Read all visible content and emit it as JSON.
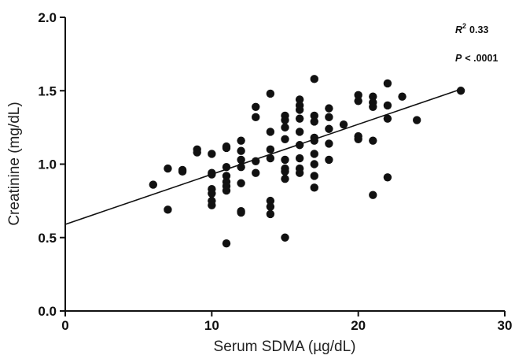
{
  "chart_data": {
    "type": "scatter",
    "title": "",
    "xlabel": "Serum SDMA (µg/dL)",
    "ylabel": "Creatinine (mg/dL)",
    "xlim": [
      0,
      30
    ],
    "ylim": [
      0.0,
      2.0
    ],
    "xticks": [
      "0",
      "10",
      "20",
      "30"
    ],
    "yticks": [
      "0.0",
      "0.5",
      "1.0",
      "1.5",
      "2.0"
    ],
    "grid": false,
    "annotations": {
      "r2_symbol": "R",
      "r2_exp": "2",
      "r2_value": "0.33",
      "p_symbol": "P",
      "p_value": "< .0001"
    },
    "regression": {
      "x": [
        0,
        27
      ],
      "y": [
        0.59,
        1.51
      ]
    },
    "points": [
      [
        6,
        0.86
      ],
      [
        7,
        0.97
      ],
      [
        7,
        0.69
      ],
      [
        8,
        0.96
      ],
      [
        8,
        0.95
      ],
      [
        9,
        1.1
      ],
      [
        9,
        1.08
      ],
      [
        10,
        1.07
      ],
      [
        10,
        0.93
      ],
      [
        10,
        0.83
      ],
      [
        10,
        0.8
      ],
      [
        10,
        0.75
      ],
      [
        10,
        0.72
      ],
      [
        10,
        0.94
      ],
      [
        11,
        1.12
      ],
      [
        11,
        1.11
      ],
      [
        11,
        0.98
      ],
      [
        11,
        0.92
      ],
      [
        11,
        0.88
      ],
      [
        11,
        0.85
      ],
      [
        11,
        0.82
      ],
      [
        11,
        0.46
      ],
      [
        12,
        1.16
      ],
      [
        12,
        1.09
      ],
      [
        12,
        1.03
      ],
      [
        12,
        0.98
      ],
      [
        12,
        0.87
      ],
      [
        12,
        0.68
      ],
      [
        12,
        0.67
      ],
      [
        13,
        1.39
      ],
      [
        13,
        1.32
      ],
      [
        13,
        1.02
      ],
      [
        13,
        0.94
      ],
      [
        14,
        1.48
      ],
      [
        14,
        1.22
      ],
      [
        14,
        1.1
      ],
      [
        14,
        1.04
      ],
      [
        14,
        0.75
      ],
      [
        14,
        0.71
      ],
      [
        14,
        0.66
      ],
      [
        15,
        1.33
      ],
      [
        15,
        1.3
      ],
      [
        15,
        1.25
      ],
      [
        15,
        1.17
      ],
      [
        15,
        1.03
      ],
      [
        15,
        0.97
      ],
      [
        15,
        0.95
      ],
      [
        15,
        0.9
      ],
      [
        15,
        0.5
      ],
      [
        16,
        1.44
      ],
      [
        16,
        1.4
      ],
      [
        16,
        1.37
      ],
      [
        16,
        1.31
      ],
      [
        16,
        1.22
      ],
      [
        16,
        1.13
      ],
      [
        16,
        1.04
      ],
      [
        16,
        0.97
      ],
      [
        16,
        0.94
      ],
      [
        17,
        1.58
      ],
      [
        17,
        1.33
      ],
      [
        17,
        1.29
      ],
      [
        17,
        1.18
      ],
      [
        17,
        1.16
      ],
      [
        17,
        1.07
      ],
      [
        17,
        1.0
      ],
      [
        17,
        0.92
      ],
      [
        17,
        0.84
      ],
      [
        18,
        1.38
      ],
      [
        18,
        1.32
      ],
      [
        18,
        1.24
      ],
      [
        18,
        1.14
      ],
      [
        18,
        1.03
      ],
      [
        19,
        1.27
      ],
      [
        20,
        1.47
      ],
      [
        20,
        1.43
      ],
      [
        20,
        1.19
      ],
      [
        20,
        1.17
      ],
      [
        21,
        1.46
      ],
      [
        21,
        1.42
      ],
      [
        21,
        1.39
      ],
      [
        21,
        1.16
      ],
      [
        21,
        0.79
      ],
      [
        22,
        1.55
      ],
      [
        22,
        1.4
      ],
      [
        22,
        1.31
      ],
      [
        22,
        0.91
      ],
      [
        23,
        1.46
      ],
      [
        24,
        1.3
      ],
      [
        27,
        1.5
      ]
    ]
  }
}
